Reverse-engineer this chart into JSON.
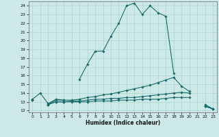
{
  "xlabel": "Humidex (Indice chaleur)",
  "background_color": "#cce9e8",
  "grid_color": "#aad4d3",
  "line_color": "#1a6b6b",
  "x_values": [
    0,
    1,
    2,
    3,
    4,
    5,
    6,
    7,
    8,
    9,
    10,
    11,
    12,
    13,
    14,
    15,
    16,
    17,
    18,
    19,
    20,
    21,
    22,
    23
  ],
  "series1": [
    13.3,
    14.0,
    12.8,
    13.3,
    13.2,
    null,
    15.6,
    17.3,
    18.8,
    18.8,
    20.5,
    22.0,
    24.0,
    24.3,
    23.0,
    24.0,
    23.2,
    22.8,
    16.3,
    null,
    null,
    null,
    12.5,
    12.2
  ],
  "series2": [
    13.2,
    null,
    12.7,
    13.2,
    13.2,
    13.2,
    13.3,
    13.5,
    13.6,
    13.8,
    13.9,
    14.1,
    14.3,
    14.5,
    14.7,
    14.9,
    15.2,
    15.5,
    15.8,
    14.8,
    14.2,
    null,
    12.7,
    12.2
  ],
  "series3": [
    13.2,
    null,
    12.7,
    13.0,
    13.0,
    13.1,
    13.1,
    13.2,
    13.3,
    13.3,
    13.4,
    13.4,
    13.5,
    13.5,
    13.6,
    13.7,
    13.8,
    13.9,
    14.0,
    14.1,
    14.0,
    null,
    12.5,
    12.2
  ],
  "series4": [
    13.2,
    null,
    12.7,
    13.0,
    13.0,
    13.0,
    13.0,
    13.0,
    13.1,
    13.1,
    13.1,
    13.2,
    13.2,
    13.2,
    13.3,
    13.3,
    13.3,
    13.4,
    13.5,
    13.5,
    13.5,
    null,
    12.5,
    12.2
  ],
  "xlim": [
    -0.5,
    23.5
  ],
  "ylim": [
    11.8,
    24.5
  ],
  "yticks": [
    12,
    13,
    14,
    15,
    16,
    17,
    18,
    19,
    20,
    21,
    22,
    23,
    24
  ],
  "xticks": [
    0,
    1,
    2,
    3,
    4,
    5,
    6,
    7,
    8,
    9,
    10,
    11,
    12,
    13,
    14,
    15,
    16,
    17,
    18,
    19,
    20,
    21,
    22,
    23
  ]
}
